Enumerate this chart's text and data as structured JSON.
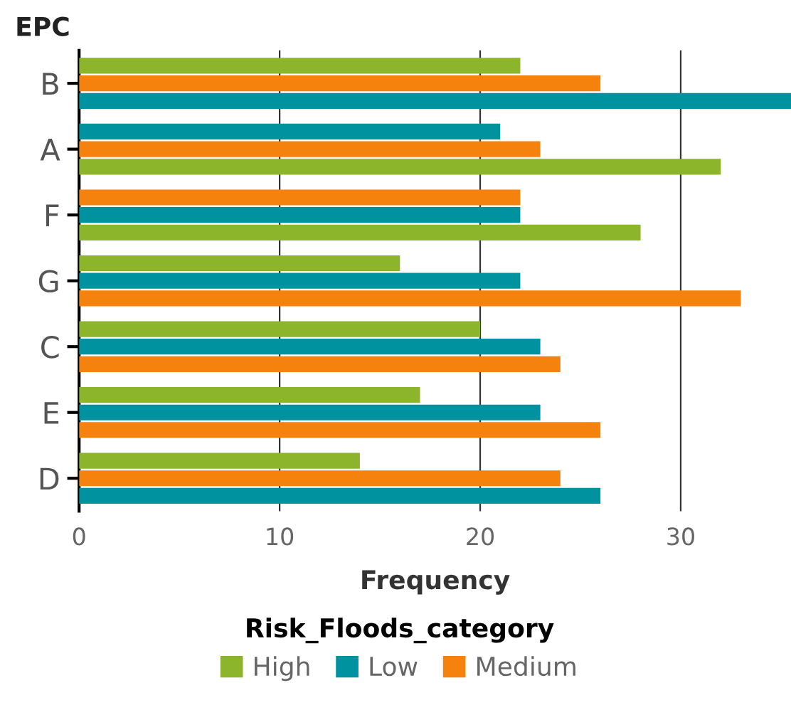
{
  "chart_data": {
    "type": "bar",
    "orientation": "horizontal",
    "ylabel": "EPC",
    "xlabel": "Frequency",
    "legend_title": "Risk_Floods_category",
    "categories": [
      "B",
      "A",
      "F",
      "G",
      "C",
      "E",
      "D"
    ],
    "series": [
      {
        "name": "High",
        "color": "#8db52c",
        "values": [
          22,
          32,
          28,
          16,
          20,
          17,
          14
        ]
      },
      {
        "name": "Low",
        "color": "#00939f",
        "values": [
          35.5,
          21,
          22,
          22,
          23,
          23,
          26
        ]
      },
      {
        "name": "Medium",
        "color": "#f5820c",
        "values": [
          26,
          23,
          22,
          33,
          24,
          26,
          24
        ]
      }
    ],
    "xlim": [
      0,
      35.5
    ],
    "xticks": [
      0,
      10,
      20,
      30
    ],
    "grid": "x",
    "legend": "bottom"
  }
}
